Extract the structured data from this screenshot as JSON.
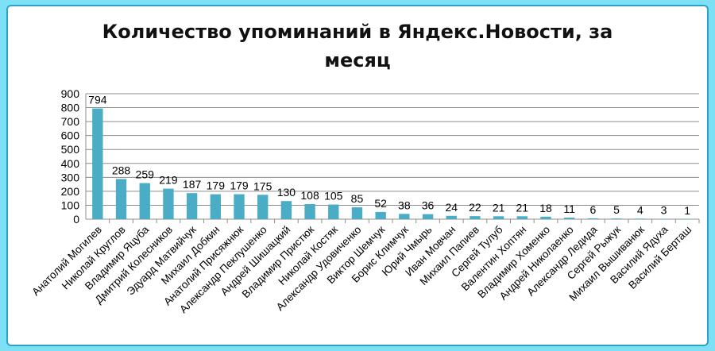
{
  "chart_data": {
    "type": "bar",
    "title_lines": [
      "Количество упоминаний в Яндекс.Новости, за",
      "месяц"
    ],
    "xlabel": "",
    "ylabel": "",
    "ylim": [
      0,
      900
    ],
    "yticks": [
      0,
      100,
      200,
      300,
      400,
      500,
      600,
      700,
      800,
      900
    ],
    "grid": true,
    "legend": "none",
    "bar_color": "#4bacc6",
    "categories": [
      "Анатолий Могилев",
      "Николай Круглов",
      "Владимир Яцуба",
      "Дмитрий Колесников",
      "Эдуард Матвийчук",
      "Михаил Добкин",
      "Анатолий Присяжнюк",
      "Александр Пеклушенко",
      "Андрей Шишацкий",
      "Владимир Пристюк",
      "Николай Костяк",
      "Александр Удовиченко",
      "Виктор Шемчук",
      "Борис Климчук",
      "Юрий Чмырь",
      "Иван Мовчан",
      "Михаил Папиев",
      "Сергей Тулуб",
      "Валентин Хоптян",
      "Владимир Хоменко",
      "Андрей Николаенко",
      "Александр Ледида",
      "Сергей Рыжук",
      "Михаил Вышиванюк",
      "Василий Ядуха",
      "Василий Берташ"
    ],
    "values": [
      794,
      288,
      259,
      219,
      187,
      179,
      179,
      175,
      130,
      108,
      105,
      85,
      52,
      38,
      36,
      24,
      22,
      21,
      21,
      18,
      11,
      6,
      5,
      4,
      3,
      1
    ]
  }
}
